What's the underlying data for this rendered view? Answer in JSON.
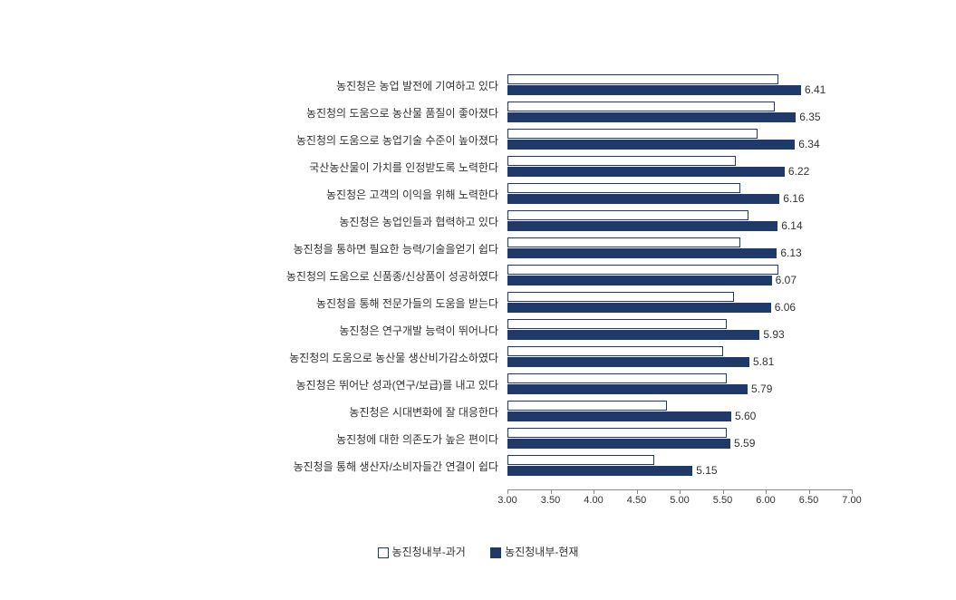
{
  "chart": {
    "type": "bar",
    "orientation": "horizontal",
    "xlim": [
      3.0,
      7.0
    ],
    "xtick_step": 0.5,
    "xticks": [
      "3.00",
      "3.50",
      "4.00",
      "4.50",
      "5.00",
      "5.50",
      "6.00",
      "6.50",
      "7.00"
    ],
    "label_fontsize": 12,
    "tick_fontsize": 11,
    "background_color": "#ffffff",
    "bar_colors": {
      "past": "#ffffff",
      "present": "#1f3a68"
    },
    "bar_border_color": "#1f3a68",
    "legend": {
      "position": "bottom",
      "items": [
        {
          "label": "농진청내부-과거",
          "key": "past"
        },
        {
          "label": "농진청내부-현재",
          "key": "present"
        }
      ]
    },
    "rows": [
      {
        "label": "농진청은 농업 발전에 기여하고 있다",
        "past": 6.15,
        "present": 6.41
      },
      {
        "label": "농진청의 도움으로 농산물 품질이 좋아졌다",
        "past": 6.1,
        "present": 6.35
      },
      {
        "label": "농진청의 도움으로 농업기술 수준이 높아졌다",
        "past": 5.9,
        "present": 6.34
      },
      {
        "label": "국산농산물이 가치를 인정받도록 노력한다",
        "past": 5.65,
        "present": 6.22
      },
      {
        "label": "농진청은 고객의 이익을 위해 노력한다",
        "past": 5.7,
        "present": 6.16
      },
      {
        "label": "농진청은 농업인들과 협력하고 있다",
        "past": 5.8,
        "present": 6.14
      },
      {
        "label": "농진청을 통하면 필요한 능력/기술을얻기 쉽다",
        "past": 5.7,
        "present": 6.13
      },
      {
        "label": "농진청의 도움으로 신품종/신상품이 성공하였다",
        "past": 6.15,
        "present": 6.07
      },
      {
        "label": "농진청을 통해 전문가들의 도움을 받는다",
        "past": 5.63,
        "present": 6.06
      },
      {
        "label": "농진청은 연구개발 능력이 뛰어나다",
        "past": 5.55,
        "present": 5.93
      },
      {
        "label": "농진청의 도움으로 농산물 생산비가감소하였다",
        "past": 5.5,
        "present": 5.81
      },
      {
        "label": "농진청은 뛰어난 성과(연구/보급)를 내고 있다",
        "past": 5.55,
        "present": 5.79
      },
      {
        "label": "농진청은 시대변화에 잘 대응한다",
        "past": 4.85,
        "present": 5.6
      },
      {
        "label": "농진청에 대한 의존도가 높은 편이다",
        "past": 5.55,
        "present": 5.59
      },
      {
        "label": "농진청을 통해 생산자/소비자들간 연결이 쉽다",
        "past": 4.7,
        "present": 5.15
      }
    ]
  }
}
